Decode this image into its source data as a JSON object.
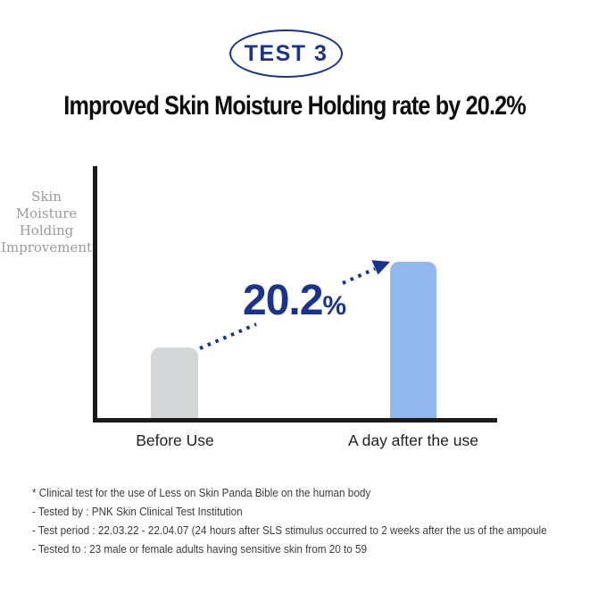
{
  "badge": {
    "label": "TEST 3"
  },
  "title": "Improved Skin Moisture Holding rate by 20.2%",
  "chart_data": {
    "type": "bar",
    "title": "Improved Skin Moisture Holding rate by 20.2%",
    "categories": [
      "Before Use",
      "A day after the use"
    ],
    "values": [
      28,
      62
    ],
    "ylabel": "Skin Moisture Holding Improvement",
    "ylabel_multiline": "Skin\nMoisture\nHolding\nImprovement",
    "annotation": "20.2%",
    "legend": "none",
    "grid": "off",
    "bar_colors": [
      "#d4d6d7",
      "#92b9ef"
    ]
  },
  "rate": {
    "value": "20.2",
    "unit": "%"
  },
  "footnotes": {
    "lines": [
      "* Clinical test for the use of Less on Skin Panda Bible on the human body",
      "- Tested by : PNK Skin Clinical Test Institution",
      "- Test period : 22.03.22 - 22.04.07 (24 hours after SLS stimulus occurred to 2 weeks after the us of the ampoule",
      "- Tested to : 23 male or female adults having sensitive skin from 20 to 59"
    ]
  },
  "colors": {
    "navy": "#1a338f",
    "bar_before": "#d4d6d7",
    "bar_after": "#92b9ef",
    "axis": "#1b1b1b",
    "muted_label": "#9b9b9b",
    "footnote_text": "#3b3b3b"
  }
}
